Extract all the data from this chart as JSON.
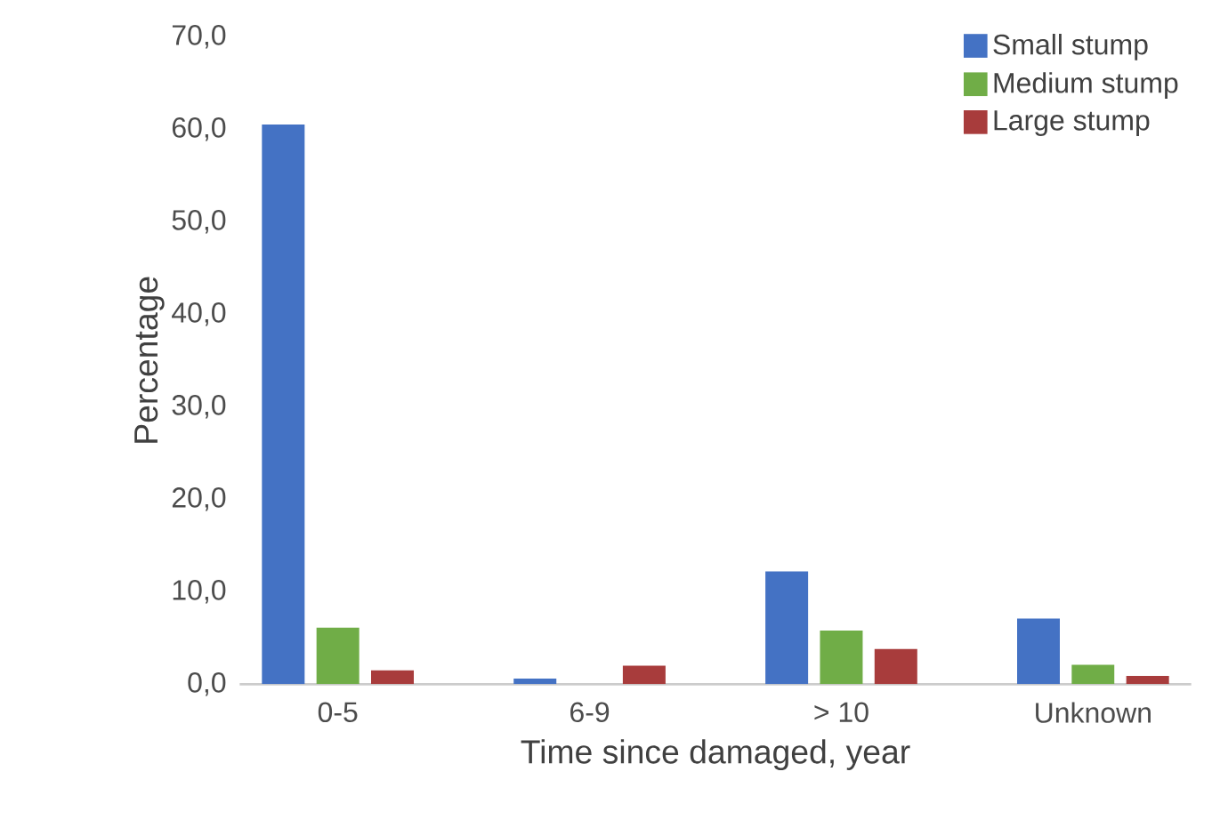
{
  "chart_data": {
    "type": "bar",
    "xlabel": "Time since damaged, year",
    "ylabel": "Percentage",
    "categories": [
      "0-5",
      "6-9",
      "> 10",
      "Unknown"
    ],
    "series": [
      {
        "name": "Small stump",
        "color": "#4472c4",
        "values": [
          60.5,
          0.6,
          12.2,
          7.1
        ]
      },
      {
        "name": "Medium stump",
        "color": "#70ad47",
        "values": [
          6.1,
          0,
          5.8,
          2.1
        ]
      },
      {
        "name": "Large stump",
        "color": "#a83c3c",
        "values": [
          1.5,
          2.0,
          3.8,
          0.9
        ]
      }
    ],
    "ylim": [
      0,
      70
    ],
    "yticks": [
      {
        "value": 0,
        "label": "0,0"
      },
      {
        "value": 10,
        "label": "10,0"
      },
      {
        "value": 20,
        "label": "20,0"
      },
      {
        "value": 30,
        "label": "30,0"
      },
      {
        "value": 40,
        "label": "40,0"
      },
      {
        "value": 50,
        "label": "50,0"
      },
      {
        "value": 60,
        "label": "60,0"
      },
      {
        "value": 70,
        "label": "70,0"
      }
    ],
    "grid": false,
    "legend": "top right"
  }
}
